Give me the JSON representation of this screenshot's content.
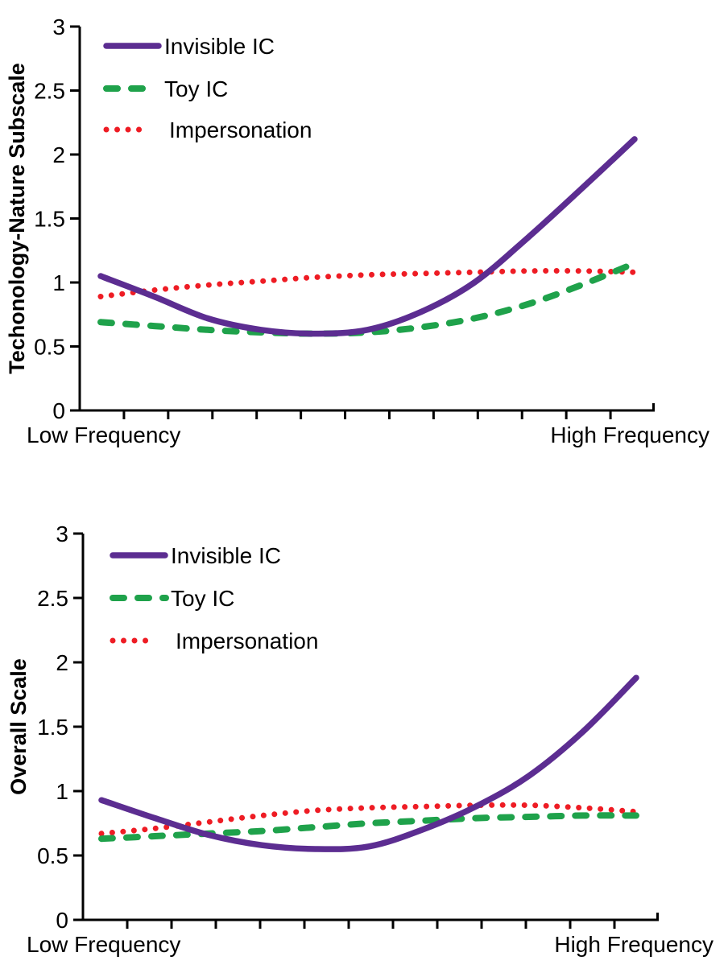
{
  "figure": {
    "background": "#ffffff",
    "axis_color": "#000000"
  },
  "chart_data": [
    {
      "type": "line",
      "title": "",
      "ylabel": "Techonology-Nature Subscale",
      "xlabel": "",
      "x_axis_left_label": "Low Frequency",
      "x_axis_right_label": "High Frequency",
      "ylim": [
        0,
        3
      ],
      "y_tick_labels": [
        "3",
        "2.5",
        "2",
        "1.5",
        "1",
        "0.5",
        "0"
      ],
      "x_normalized": [
        0,
        0.1,
        0.2,
        0.3,
        0.4,
        0.5,
        0.6,
        0.7,
        0.8,
        0.9,
        1
      ],
      "grid": false,
      "legend_position": "top-left",
      "series": [
        {
          "name": "Invisible IC",
          "color": "#5c2d91",
          "style": "solid",
          "values": [
            1.05,
            0.89,
            0.72,
            0.63,
            0.6,
            0.63,
            0.77,
            1.0,
            1.35,
            1.73,
            2.12
          ]
        },
        {
          "name": "Toy IC",
          "color": "#1fa24b",
          "style": "dashed",
          "values": [
            0.69,
            0.66,
            0.63,
            0.61,
            0.6,
            0.61,
            0.65,
            0.72,
            0.83,
            0.98,
            1.15
          ]
        },
        {
          "name": "Impersonation",
          "color": "#ee1c24",
          "style": "dotted",
          "values": [
            0.89,
            0.94,
            0.98,
            1.01,
            1.04,
            1.06,
            1.07,
            1.08,
            1.09,
            1.09,
            1.08
          ]
        }
      ]
    },
    {
      "type": "line",
      "title": "",
      "ylabel": "Overall Scale",
      "xlabel": "",
      "x_axis_left_label": "Low Frequency",
      "x_axis_right_label": "High Frequency",
      "ylim": [
        0,
        3
      ],
      "y_tick_labels": [
        "3",
        "2.5",
        "2",
        "1.5",
        "1",
        "0.5",
        "0"
      ],
      "x_normalized": [
        0,
        0.1,
        0.2,
        0.3,
        0.4,
        0.5,
        0.6,
        0.7,
        0.8,
        0.9,
        1
      ],
      "grid": false,
      "legend_position": "top-left",
      "series": [
        {
          "name": "Invisible IC",
          "color": "#5c2d91",
          "style": "solid",
          "values": [
            0.93,
            0.79,
            0.66,
            0.58,
            0.55,
            0.57,
            0.7,
            0.88,
            1.12,
            1.46,
            1.88
          ]
        },
        {
          "name": "Toy IC",
          "color": "#1fa24b",
          "style": "dashed",
          "values": [
            0.63,
            0.65,
            0.67,
            0.69,
            0.72,
            0.75,
            0.77,
            0.79,
            0.8,
            0.81,
            0.81
          ]
        },
        {
          "name": "Impersonation",
          "color": "#ee1c24",
          "style": "dotted",
          "values": [
            0.67,
            0.71,
            0.76,
            0.81,
            0.85,
            0.87,
            0.88,
            0.89,
            0.89,
            0.87,
            0.84
          ]
        }
      ]
    }
  ]
}
